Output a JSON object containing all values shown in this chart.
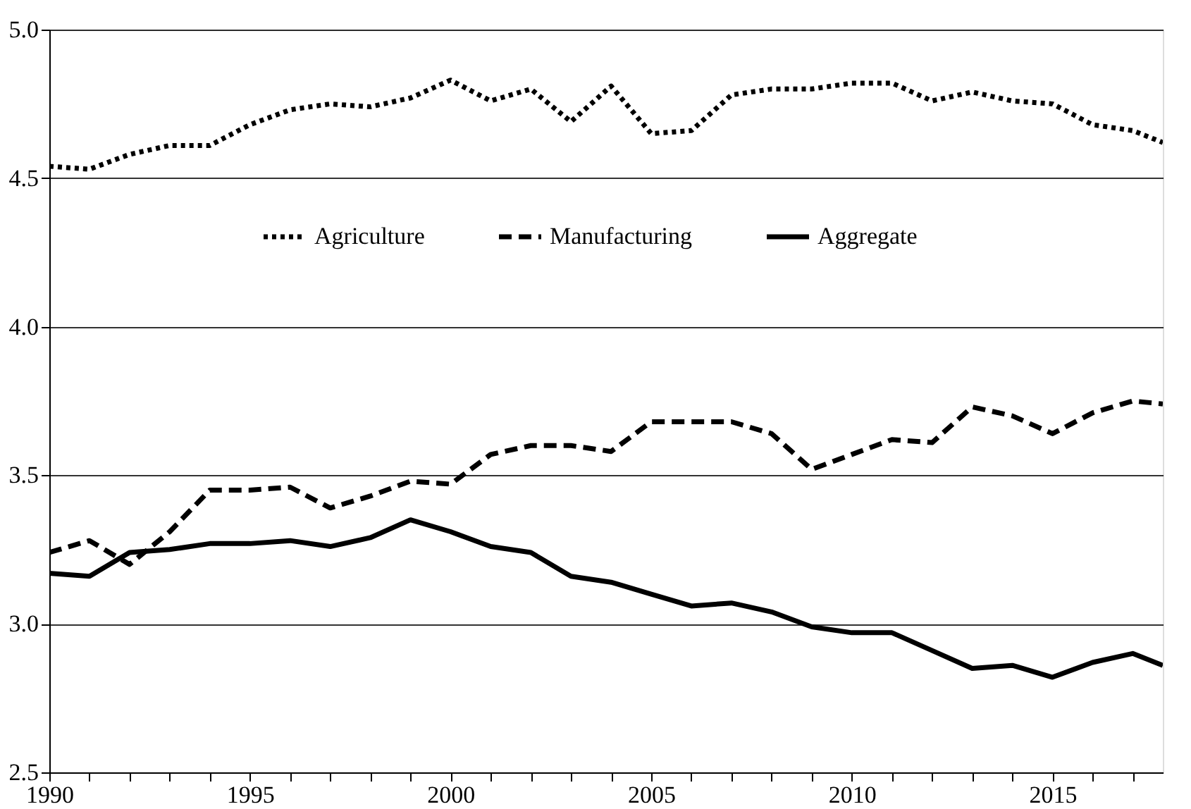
{
  "chart_data": {
    "type": "line",
    "x": [
      1990,
      1991,
      1992,
      1993,
      1994,
      1995,
      1996,
      1997,
      1998,
      1999,
      2000,
      2001,
      2002,
      2003,
      2004,
      2005,
      2006,
      2007,
      2008,
      2009,
      2010,
      2011,
      2012,
      2013,
      2014,
      2015,
      2016,
      2017,
      2017.75
    ],
    "series": [
      {
        "name": "Agriculture",
        "color": "#000000",
        "line_style": "dotted",
        "values": [
          4.54,
          4.53,
          4.58,
          4.61,
          4.61,
          4.68,
          4.73,
          4.75,
          4.74,
          4.77,
          4.83,
          4.76,
          4.8,
          4.69,
          4.81,
          4.65,
          4.66,
          4.78,
          4.8,
          4.8,
          4.82,
          4.82,
          4.76,
          4.79,
          4.76,
          4.75,
          4.68,
          4.66,
          4.62
        ]
      },
      {
        "name": "Manufacturing",
        "color": "#000000",
        "line_style": "dashed",
        "values": [
          3.24,
          3.28,
          3.2,
          3.31,
          3.45,
          3.45,
          3.46,
          3.39,
          3.43,
          3.48,
          3.47,
          3.57,
          3.6,
          3.6,
          3.58,
          3.68,
          3.68,
          3.68,
          3.64,
          3.52,
          3.57,
          3.62,
          3.61,
          3.73,
          3.7,
          3.64,
          3.71,
          3.75,
          3.74
        ]
      },
      {
        "name": "Aggregate",
        "color": "#000000",
        "line_style": "solid",
        "values": [
          3.17,
          3.16,
          3.24,
          3.25,
          3.27,
          3.27,
          3.28,
          3.26,
          3.29,
          3.35,
          3.31,
          3.26,
          3.24,
          3.16,
          3.14,
          3.1,
          3.06,
          3.07,
          3.04,
          2.99,
          2.97,
          2.97,
          2.91,
          2.85,
          2.86,
          2.82,
          2.87,
          2.9,
          2.86
        ]
      }
    ],
    "xlim": [
      1990,
      2017.75
    ],
    "xticks": [
      1990,
      {
        "value": 1991,
        "label": null
      },
      {
        "value": 1992,
        "label": null
      },
      {
        "value": 1993,
        "label": null
      },
      {
        "value": 1994,
        "label": null
      },
      1995,
      {
        "value": 1996,
        "label": null
      },
      {
        "value": 1997,
        "label": null
      },
      {
        "value": 1998,
        "label": null
      },
      {
        "value": 1999,
        "label": null
      },
      2000,
      {
        "value": 2001,
        "label": null
      },
      {
        "value": 2002,
        "label": null
      },
      {
        "value": 2003,
        "label": null
      },
      {
        "value": 2004,
        "label": null
      },
      2005,
      {
        "value": 2006,
        "label": null
      },
      {
        "value": 2007,
        "label": null
      },
      {
        "value": 2008,
        "label": null
      },
      {
        "value": 2009,
        "label": null
      },
      2010,
      {
        "value": 2011,
        "label": null
      },
      {
        "value": 2012,
        "label": null
      },
      {
        "value": 2013,
        "label": null
      },
      {
        "value": 2014,
        "label": null
      },
      2015,
      {
        "value": 2016,
        "label": null
      },
      {
        "value": 2017,
        "label": null
      }
    ],
    "ylim": [
      2.5,
      5.0
    ],
    "yticks": [
      {
        "value": 2.5,
        "label": "2.5"
      },
      {
        "value": 3.0,
        "label": "3.0"
      },
      {
        "value": 3.5,
        "label": "3.5"
      },
      {
        "value": 4.0,
        "label": "4.0"
      },
      {
        "value": 4.5,
        "label": "4.5"
      },
      {
        "value": 5.0,
        "label": "5.0"
      }
    ],
    "grid": "y",
    "legend": "top",
    "marker": "none"
  }
}
